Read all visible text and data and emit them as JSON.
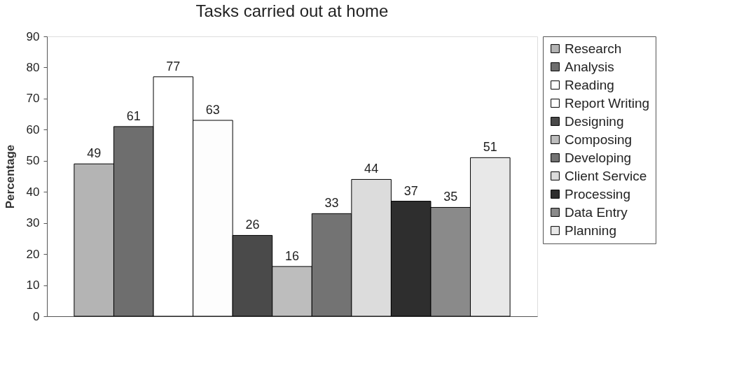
{
  "chart_data": {
    "type": "bar",
    "title": "Tasks carried out at home",
    "ylabel": "Percentage",
    "categories": [
      null
    ],
    "series": [
      {
        "name": "Research",
        "color": "#b4b4b4",
        "values": [
          49
        ]
      },
      {
        "name": "Analysis",
        "color": "#6e6e6e",
        "values": [
          61
        ]
      },
      {
        "name": "Reading",
        "color": "#ffffff",
        "values": [
          77
        ]
      },
      {
        "name": "Report Writing",
        "color": "#fdfdfd",
        "values": [
          63
        ]
      },
      {
        "name": "Designing",
        "color": "#4a4a4a",
        "values": [
          26
        ]
      },
      {
        "name": "Composing",
        "color": "#bdbdbd",
        "values": [
          16
        ]
      },
      {
        "name": "Developing",
        "color": "#737373",
        "values": [
          33
        ]
      },
      {
        "name": "Client Service",
        "color": "#dcdcdc",
        "values": [
          44
        ]
      },
      {
        "name": "Processing",
        "color": "#2e2e2e",
        "values": [
          37
        ]
      },
      {
        "name": "Data Entry",
        "color": "#8a8a8a",
        "values": [
          35
        ]
      },
      {
        "name": "Planning",
        "color": "#e8e8e8",
        "values": [
          51
        ]
      }
    ],
    "ylim": [
      0,
      90
    ],
    "yticks": [
      0,
      10,
      20,
      30,
      40,
      50,
      60,
      70,
      80,
      90
    ],
    "data_labels": true,
    "legend": "right",
    "grid": false,
    "tick_labels": "y"
  }
}
